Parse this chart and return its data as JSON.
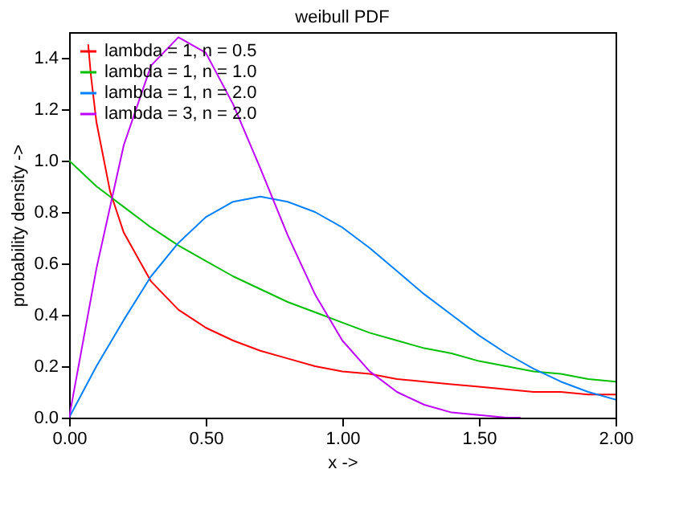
{
  "chart_data": {
    "type": "line",
    "title": "weibull PDF",
    "xlabel": "x ->",
    "ylabel": "probability density ->",
    "xlim": [
      0,
      2
    ],
    "ylim": [
      0,
      1.5
    ],
    "xticks": [
      {
        "value": 0,
        "label": "0.00"
      },
      {
        "value": 0.5,
        "label": "0.50"
      },
      {
        "value": 1,
        "label": "1.00"
      },
      {
        "value": 1.5,
        "label": "1.50"
      },
      {
        "value": 2,
        "label": "2.00"
      }
    ],
    "yticks": [
      {
        "value": 0,
        "label": "0.0"
      },
      {
        "value": 0.2,
        "label": "0.2"
      },
      {
        "value": 0.4,
        "label": "0.4"
      },
      {
        "value": 0.6,
        "label": "0.6"
      },
      {
        "value": 0.8,
        "label": "0.8"
      },
      {
        "value": 1,
        "label": "1.0"
      },
      {
        "value": 1.2,
        "label": "1.2"
      },
      {
        "value": 1.4,
        "label": "1.4"
      }
    ],
    "grid": false,
    "legend": "top left",
    "marker": "none",
    "line_style": "solid",
    "series": [
      {
        "name": "lambda = 1, n = 0.5",
        "color": "#ff0000",
        "x": [
          0.07,
          0.08,
          0.1,
          0.15,
          0.2,
          0.3,
          0.4,
          0.5,
          0.6,
          0.7,
          0.8,
          0.9,
          1.0,
          1.1,
          1.2,
          1.3,
          1.4,
          1.5,
          1.6,
          1.7,
          1.8,
          1.9,
          2.0
        ],
        "values": [
          1.45,
          1.33,
          1.15,
          0.88,
          0.72,
          0.53,
          0.42,
          0.35,
          0.3,
          0.26,
          0.23,
          0.2,
          0.18,
          0.17,
          0.15,
          0.14,
          0.13,
          0.12,
          0.11,
          0.1,
          0.1,
          0.09,
          0.09
        ]
      },
      {
        "name": "lambda = 1, n = 1.0",
        "color": "#00c000",
        "x": [
          0,
          0.1,
          0.2,
          0.3,
          0.4,
          0.5,
          0.6,
          0.7,
          0.8,
          0.9,
          1.0,
          1.1,
          1.2,
          1.3,
          1.4,
          1.5,
          1.6,
          1.7,
          1.8,
          1.9,
          2.0
        ],
        "values": [
          1.0,
          0.9,
          0.82,
          0.74,
          0.67,
          0.61,
          0.55,
          0.5,
          0.45,
          0.41,
          0.37,
          0.33,
          0.3,
          0.27,
          0.25,
          0.22,
          0.2,
          0.18,
          0.17,
          0.15,
          0.14
        ]
      },
      {
        "name": "lambda = 1, n = 2.0",
        "color": "#0080ff",
        "x": [
          0,
          0.1,
          0.2,
          0.3,
          0.4,
          0.5,
          0.6,
          0.7,
          0.8,
          0.9,
          1.0,
          1.1,
          1.2,
          1.3,
          1.4,
          1.5,
          1.6,
          1.7,
          1.8,
          1.9,
          2.0
        ],
        "values": [
          0,
          0.2,
          0.38,
          0.55,
          0.68,
          0.78,
          0.84,
          0.86,
          0.84,
          0.8,
          0.74,
          0.66,
          0.57,
          0.48,
          0.4,
          0.32,
          0.25,
          0.19,
          0.14,
          0.1,
          0.07
        ]
      },
      {
        "name": "lambda = 3, n = 2.0",
        "color": "#c000ff",
        "x": [
          0,
          0.1,
          0.2,
          0.3,
          0.4,
          0.5,
          0.6,
          0.7,
          0.8,
          0.9,
          1.0,
          1.1,
          1.2,
          1.3,
          1.4,
          1.5,
          1.6,
          1.65
        ],
        "values": [
          0,
          0.58,
          1.06,
          1.37,
          1.48,
          1.42,
          1.22,
          0.97,
          0.71,
          0.48,
          0.3,
          0.18,
          0.1,
          0.05,
          0.02,
          0.01,
          0.0,
          0.0
        ]
      }
    ]
  }
}
